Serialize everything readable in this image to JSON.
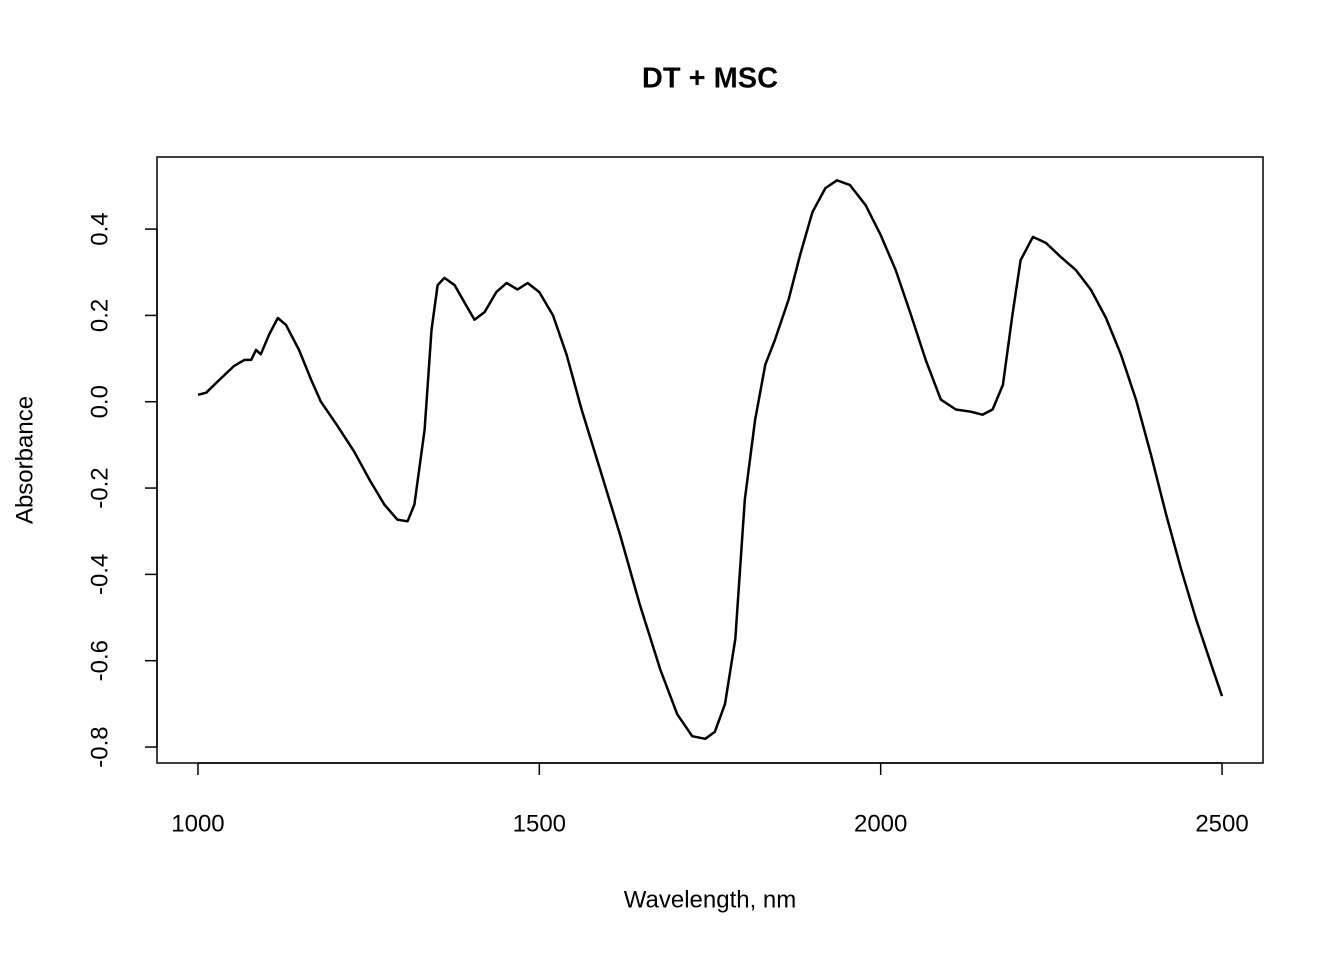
{
  "chart_data": {
    "type": "line",
    "title": "DT + MSC",
    "x_label": "Wavelength, nm",
    "y_label": "Absorbance",
    "xlim": [
      940,
      2560
    ],
    "ylim": [
      -0.837,
      0.567
    ],
    "xticks": [
      1000,
      1500,
      2000,
      2500
    ],
    "yticks": [
      -0.8,
      -0.6,
      -0.4,
      -0.2,
      {
        "value": 0,
        "label": "0.0"
      },
      0.2,
      0.4
    ],
    "grid": false,
    "series": [
      {
        "color": "#000000",
        "x": [
          1000,
          1012,
          1031,
          1053,
          1068,
          1078,
          1085,
          1092,
          1104,
          1117,
          1129,
          1148,
          1166,
          1180,
          1203,
          1229,
          1251,
          1273,
          1292,
          1307,
          1317,
          1332,
          1342,
          1351,
          1361,
          1376,
          1390,
          1405,
          1420,
          1437,
          1452,
          1468,
          1483,
          1500,
          1520,
          1540,
          1562,
          1589,
          1618,
          1647,
          1677,
          1702,
          1724,
          1743,
          1757,
          1772,
          1787,
          1801,
          1816,
          1831,
          1845,
          1865,
          1882,
          1900,
          1919,
          1936,
          1955,
          1978,
          2000,
          2022,
          2043,
          2066,
          2088,
          2110,
          2132,
          2149,
          2164,
          2179,
          2193,
          2205,
          2223,
          2242,
          2264,
          2286,
          2308,
          2330,
          2352,
          2374,
          2396,
          2418,
          2440,
          2462,
          2484,
          2500
        ],
        "values": [
          0.016,
          0.021,
          0.05,
          0.083,
          0.097,
          0.097,
          0.12,
          0.11,
          0.155,
          0.194,
          0.178,
          0.12,
          0.05,
          0.0,
          -0.053,
          -0.116,
          -0.18,
          -0.238,
          -0.273,
          -0.277,
          -0.238,
          -0.065,
          0.166,
          0.27,
          0.287,
          0.27,
          0.231,
          0.19,
          0.208,
          0.254,
          0.275,
          0.26,
          0.275,
          0.254,
          0.2,
          0.109,
          -0.018,
          -0.157,
          -0.307,
          -0.469,
          -0.62,
          -0.724,
          -0.775,
          -0.781,
          -0.765,
          -0.7,
          -0.55,
          -0.227,
          -0.042,
          0.086,
          0.143,
          0.236,
          0.34,
          0.439,
          0.495,
          0.513,
          0.502,
          0.455,
          0.386,
          0.305,
          0.208,
          0.097,
          0.005,
          -0.018,
          -0.023,
          -0.03,
          -0.018,
          0.039,
          0.201,
          0.328,
          0.382,
          0.368,
          0.335,
          0.305,
          0.259,
          0.194,
          0.109,
          0.005,
          -0.123,
          -0.261,
          -0.388,
          -0.504,
          -0.608,
          -0.682
        ]
      }
    ]
  }
}
